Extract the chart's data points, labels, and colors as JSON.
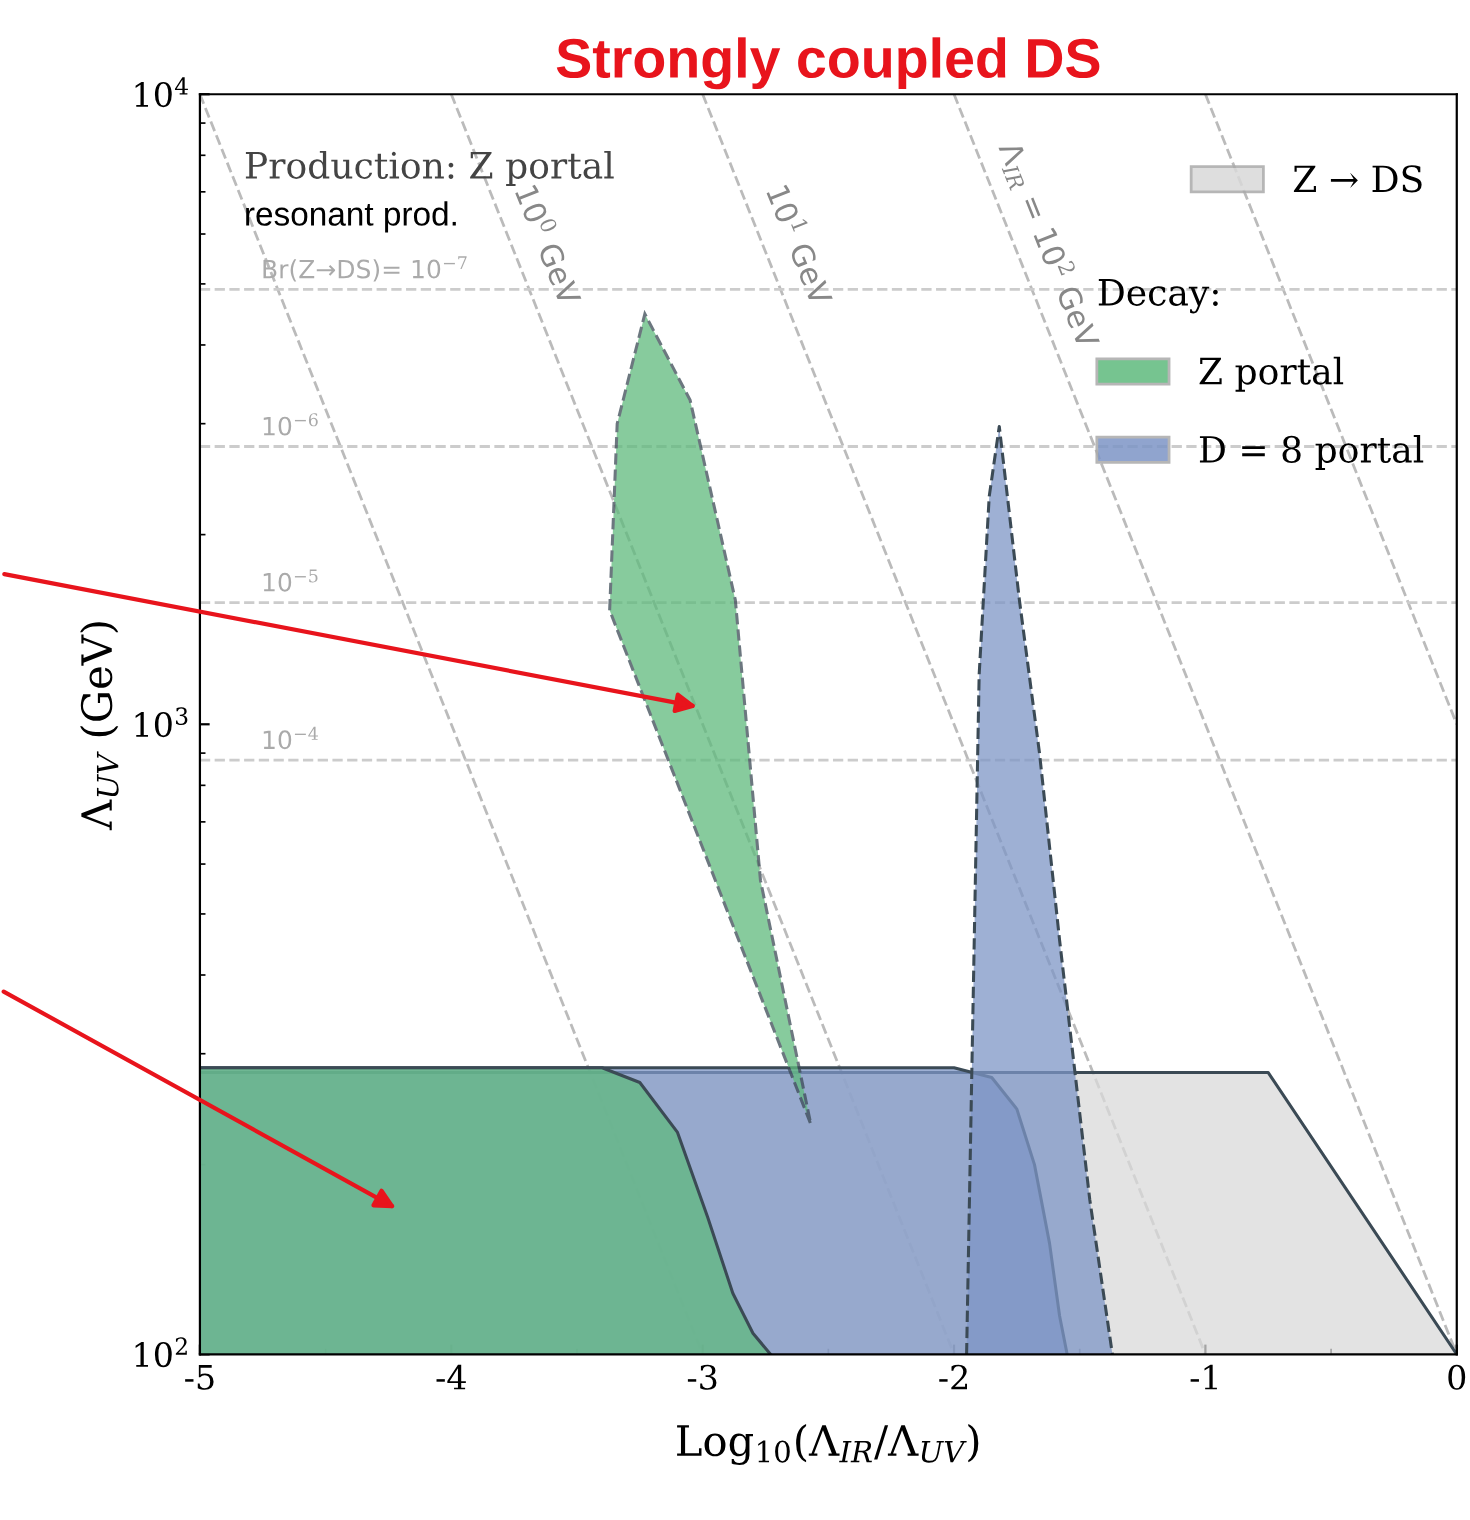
{
  "chart_data": {
    "type": "area",
    "title": "Strongly coupled DS",
    "xlabel": "Log$_{10}$(Λ$_{IR}$/Λ$_{UV}$)",
    "ylabel": "Λ$_{UV}$ (GeV)",
    "legend_title": "Decay:",
    "xlim": [
      -5,
      0
    ],
    "xticks": [
      -5,
      -4,
      -3,
      -2,
      -1,
      0
    ],
    "ylim": [
      100,
      10000
    ],
    "yticks": [
      {
        "value": 100,
        "label": "10$^{2}$"
      },
      {
        "value": 1000,
        "label": "10$^{3}$"
      },
      {
        "value": 10000,
        "label": "10$^{4}$"
      }
    ],
    "log": "y",
    "grid": false,
    "legend": "top right",
    "series": [
      {
        "name": "Z → DS",
        "color": "#d9d9d9",
        "line_style": "solid",
        "x": [
          -5,
          -0.75,
          0
        ],
        "values": [
          280,
          280,
          100
        ]
      },
      {
        "name": "D = 8 portal",
        "color": "#7d95c6",
        "line_style": "solid",
        "x": [
          -5,
          -2.0,
          -1.85,
          -1.75,
          -1.68,
          -1.62,
          -1.58,
          -1.55
        ],
        "values": [
          285,
          285,
          275,
          245,
          200,
          150,
          115,
          100
        ]
      },
      {
        "color": "#7d95c6",
        "line_style": "dashed",
        "x": [
          -1.95,
          -1.9,
          -1.86,
          -1.82,
          -1.74,
          -1.66,
          -1.58,
          -1.46,
          -1.37
        ],
        "values": [
          100,
          1200,
          2300,
          2970,
          1575,
          900,
          454,
          176,
          100
        ]
      },
      {
        "name": "Z portal",
        "color": "#5fba7d",
        "line_style": "solid",
        "x": [
          -5,
          -3.4,
          -3.25,
          -3.1,
          -2.98,
          -2.88,
          -2.8,
          -2.73
        ],
        "values": [
          285,
          285,
          270,
          225,
          165,
          125,
          108,
          100
        ]
      },
      {
        "color": "#5fba7d",
        "line_style": "dashed",
        "x": [
          -3.37,
          -3.34,
          -3.23,
          -3.05,
          -2.87,
          -2.77,
          -2.57,
          -2.77,
          -2.87,
          -3.05,
          -3.23,
          -3.34,
          -3.37
        ],
        "values": [
          1517,
          3000,
          4480,
          3270,
          1575,
          565,
          232,
          371,
          469,
          716,
          1092,
          1413,
          1517
        ]
      },
      {
        "type": "line",
        "color": "#bbbbbb",
        "line_style": "dashed",
        "x": [
          -5,
          -3
        ],
        "values": [
          10000,
          100
        ]
      },
      {
        "type": "line",
        "name": "10$^{0}$ GeV",
        "color": "#bbbbbb",
        "line_style": "dashed",
        "x": [
          -4,
          -2
        ],
        "values": [
          10000,
          100
        ]
      },
      {
        "type": "line",
        "name": "10$^{1}$ GeV",
        "color": "#bbbbbb",
        "line_style": "dashed",
        "x": [
          -3,
          -1
        ],
        "values": [
          10000,
          100
        ]
      },
      {
        "type": "line",
        "name": "Λ$_{IR}$ = 10$^{2}$ GeV",
        "color": "#bbbbbb",
        "line_style": "dashed",
        "x": [
          -2,
          0
        ],
        "values": [
          10000,
          100
        ]
      },
      {
        "type": "line",
        "color": "#bbbbbb",
        "line_style": "dashed",
        "x": [
          -1,
          0
        ],
        "values": [
          10000,
          1000
        ]
      }
    ],
    "ref_lines": [
      {
        "axis": "y",
        "value": 4900,
        "color": "#cccccc",
        "line_style": "dashed"
      },
      {
        "axis": "y",
        "value": 2760,
        "color": "#cccccc",
        "line_style": "dashed"
      },
      {
        "axis": "y",
        "value": 1560,
        "color": "#cccccc",
        "line_style": "dashed"
      },
      {
        "axis": "y",
        "value": 877,
        "color": "#cccccc",
        "line_style": "dashed"
      }
    ],
    "annotations": [
      "Production: Z portal",
      "resonant prod.",
      "Br(Z→DS)= 10$^{−7}$",
      "10$^{−6}$",
      "10$^{−5}$",
      "10$^{−4}$"
    ]
  }
}
